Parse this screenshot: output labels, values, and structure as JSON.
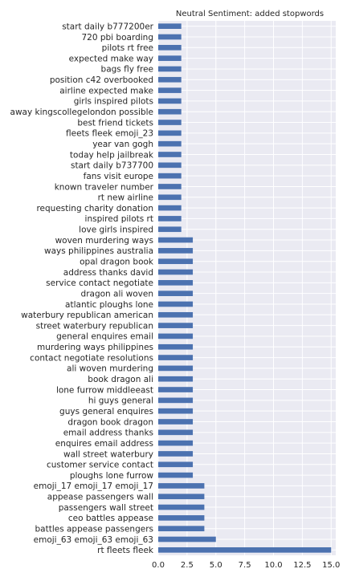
{
  "chart_data": {
    "type": "bar",
    "orientation": "horizontal",
    "title": "Neutral Sentiment: added stopwords",
    "xlabel": "",
    "ylabel": "",
    "xlim": [
      0,
      15.4
    ],
    "xticks": [
      "0.0",
      "2.5",
      "5.0",
      "7.5",
      "10.0",
      "12.5",
      "15.0"
    ],
    "grid": true,
    "bar_color": "#4c72b0",
    "plot_bg": "#eaeaf2",
    "categories": [
      "start daily b777200er",
      "720 pbi boarding",
      "pilots rt free",
      "expected make way",
      "bags fly free",
      "position c42 overbooked",
      "airline expected make",
      "girls inspired pilots",
      "away kingscollegelondon possible",
      "best friend tickets",
      "fleets fleek emoji_23",
      "year van gogh",
      "today help jailbreak",
      "start daily b737700",
      "fans visit europe",
      "known traveler number",
      "rt new airline",
      "requesting charity donation",
      "inspired pilots rt",
      "love girls inspired",
      "woven murdering ways",
      "ways philippines australia",
      "opal dragon book",
      "address thanks david",
      "service contact negotiate",
      "dragon ali woven",
      "atlantic ploughs lone",
      "waterbury republican american",
      "street waterbury republican",
      "general enquires email",
      "murdering ways philippines",
      "contact negotiate resolutions",
      "ali woven murdering",
      "book dragon ali",
      "lone furrow middleeast",
      "hi guys general",
      "guys general enquires",
      "dragon book dragon",
      "email address thanks",
      "enquires email address",
      "wall street waterbury",
      "customer service contact",
      "ploughs lone furrow",
      "emoji_17 emoji_17 emoji_17",
      "appease passengers wall",
      "passengers wall street",
      "ceo battles appease",
      "battles appease passengers",
      "emoji_63 emoji_63 emoji_63",
      "rt fleets fleek"
    ],
    "values": [
      2,
      2,
      2,
      2,
      2,
      2,
      2,
      2,
      2,
      2,
      2,
      2,
      2,
      2,
      2,
      2,
      2,
      2,
      2,
      2,
      3,
      3,
      3,
      3,
      3,
      3,
      3,
      3,
      3,
      3,
      3,
      3,
      3,
      3,
      3,
      3,
      3,
      3,
      3,
      3,
      3,
      3,
      3,
      4,
      4,
      4,
      4,
      4,
      5,
      15
    ]
  }
}
